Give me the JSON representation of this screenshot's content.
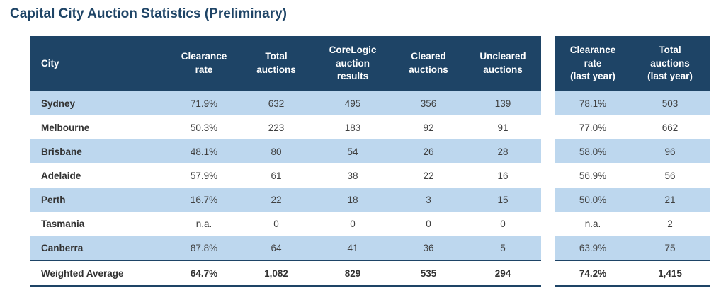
{
  "page": {
    "title": "Capital City Auction Statistics (Preliminary)"
  },
  "colors": {
    "header_bg": "#1E4466",
    "alt_row": "#BDD7EE",
    "title_text": "#1E4466",
    "body_text": "#3F3F3F"
  },
  "table": {
    "left_headers": [
      {
        "key": "city",
        "align": "left",
        "lines": [
          "City"
        ]
      },
      {
        "key": "clearance-rate",
        "lines": [
          "Clearance",
          "rate"
        ]
      },
      {
        "key": "total-auctions",
        "lines": [
          "Total",
          "auctions"
        ]
      },
      {
        "key": "corelogic-auction-results",
        "lines": [
          "CoreLogic",
          "auction",
          "results"
        ]
      },
      {
        "key": "cleared-auctions",
        "lines": [
          "Cleared",
          "auctions"
        ]
      },
      {
        "key": "uncleared-auctions",
        "lines": [
          "Uncleared",
          "auctions"
        ]
      }
    ],
    "right_headers": [
      {
        "key": "clearance-rate-last-year",
        "lines": [
          "Clearance",
          "rate",
          "(last year)"
        ]
      },
      {
        "key": "total-auctions-last-year",
        "lines": [
          "Total",
          "auctions",
          "(last year)"
        ]
      }
    ],
    "rows": [
      {
        "city": "Sydney",
        "clearance_rate": "71.9%",
        "total_auctions": "632",
        "corelogic_results": "495",
        "cleared": "356",
        "uncleared": "139",
        "clearance_rate_last_year": "78.1%",
        "total_auctions_last_year": "503"
      },
      {
        "city": "Melbourne",
        "clearance_rate": "50.3%",
        "total_auctions": "223",
        "corelogic_results": "183",
        "cleared": "92",
        "uncleared": "91",
        "clearance_rate_last_year": "77.0%",
        "total_auctions_last_year": "662"
      },
      {
        "city": "Brisbane",
        "clearance_rate": "48.1%",
        "total_auctions": "80",
        "corelogic_results": "54",
        "cleared": "26",
        "uncleared": "28",
        "clearance_rate_last_year": "58.0%",
        "total_auctions_last_year": "96"
      },
      {
        "city": "Adelaide",
        "clearance_rate": "57.9%",
        "total_auctions": "61",
        "corelogic_results": "38",
        "cleared": "22",
        "uncleared": "16",
        "clearance_rate_last_year": "56.9%",
        "total_auctions_last_year": "56"
      },
      {
        "city": "Perth",
        "clearance_rate": "16.7%",
        "total_auctions": "22",
        "corelogic_results": "18",
        "cleared": "3",
        "uncleared": "15",
        "clearance_rate_last_year": "50.0%",
        "total_auctions_last_year": "21"
      },
      {
        "city": "Tasmania",
        "clearance_rate": "n.a.",
        "total_auctions": "0",
        "corelogic_results": "0",
        "cleared": "0",
        "uncleared": "0",
        "clearance_rate_last_year": "n.a.",
        "total_auctions_last_year": "2"
      },
      {
        "city": "Canberra",
        "clearance_rate": "87.8%",
        "total_auctions": "64",
        "corelogic_results": "41",
        "cleared": "36",
        "uncleared": "5",
        "clearance_rate_last_year": "63.9%",
        "total_auctions_last_year": "75"
      },
      {
        "city": "Weighted Average",
        "is_total": true,
        "clearance_rate": "64.7%",
        "total_auctions": "1,082",
        "corelogic_results": "829",
        "cleared": "535",
        "uncleared": "294",
        "clearance_rate_last_year": "74.2%",
        "total_auctions_last_year": "1,415"
      }
    ]
  }
}
